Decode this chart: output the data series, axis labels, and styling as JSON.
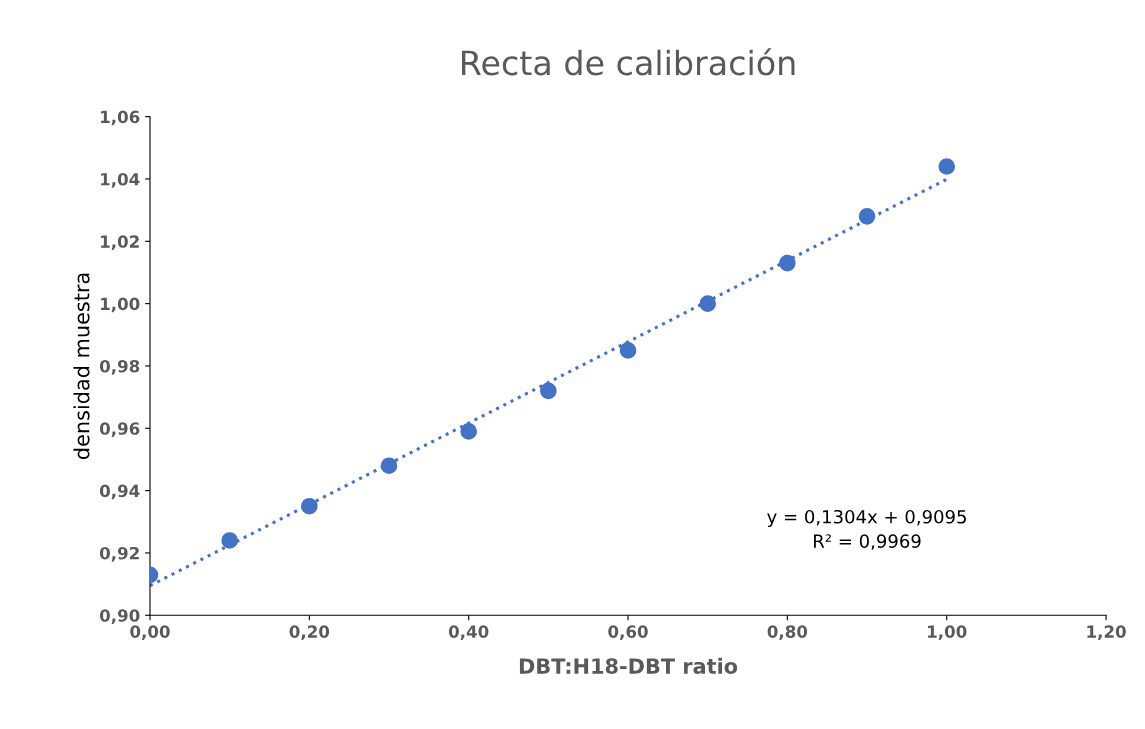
{
  "chart_data": {
    "type": "scatter",
    "title": "Recta de calibración",
    "xlabel": "DBT:H18-DBT ratio",
    "ylabel": "densidad muestra",
    "series": [
      {
        "color": "#4472c4",
        "marker": "circle",
        "x": [
          0,
          0.1,
          0.2,
          0.3,
          0.4,
          0.5,
          0.6,
          0.7,
          0.8,
          0.9,
          1.0
        ],
        "values": [
          0.913,
          0.924,
          0.935,
          0.948,
          0.959,
          0.972,
          0.985,
          1.0,
          1.013,
          1.028,
          1.044
        ]
      },
      {
        "type": "line",
        "color": "#4472c4",
        "marker": "none",
        "line_style": "dotted",
        "x": [
          0,
          1.0
        ],
        "values": [
          0.9095,
          1.0399
        ]
      }
    ],
    "xlim": [
      0,
      1.2
    ],
    "xticks": [
      {
        "value": 0,
        "label": "0,00"
      },
      {
        "value": 0.2,
        "label": "0,20"
      },
      {
        "value": 0.4,
        "label": "0,40"
      },
      {
        "value": 0.6,
        "label": "0,60"
      },
      {
        "value": 0.8,
        "label": "0,80"
      },
      {
        "value": 1.0,
        "label": "1,00"
      },
      {
        "value": 1.2,
        "label": "1,20"
      }
    ],
    "ylim": [
      0.9,
      1.06
    ],
    "yticks": [
      {
        "value": 0.9,
        "label": "0,90"
      },
      {
        "value": 0.92,
        "label": "0,92"
      },
      {
        "value": 0.94,
        "label": "0,94"
      },
      {
        "value": 0.96,
        "label": "0,96"
      },
      {
        "value": 0.98,
        "label": "0,98"
      },
      {
        "value": 1.0,
        "label": "1,00"
      },
      {
        "value": 1.02,
        "label": "1,02"
      },
      {
        "value": 1.04,
        "label": "1,04"
      },
      {
        "value": 1.06,
        "label": "1,06"
      }
    ],
    "annotations": [
      "y = 0,1304x + 0,9095\nR² = 0,9969"
    ],
    "grid": false,
    "legend": false
  }
}
